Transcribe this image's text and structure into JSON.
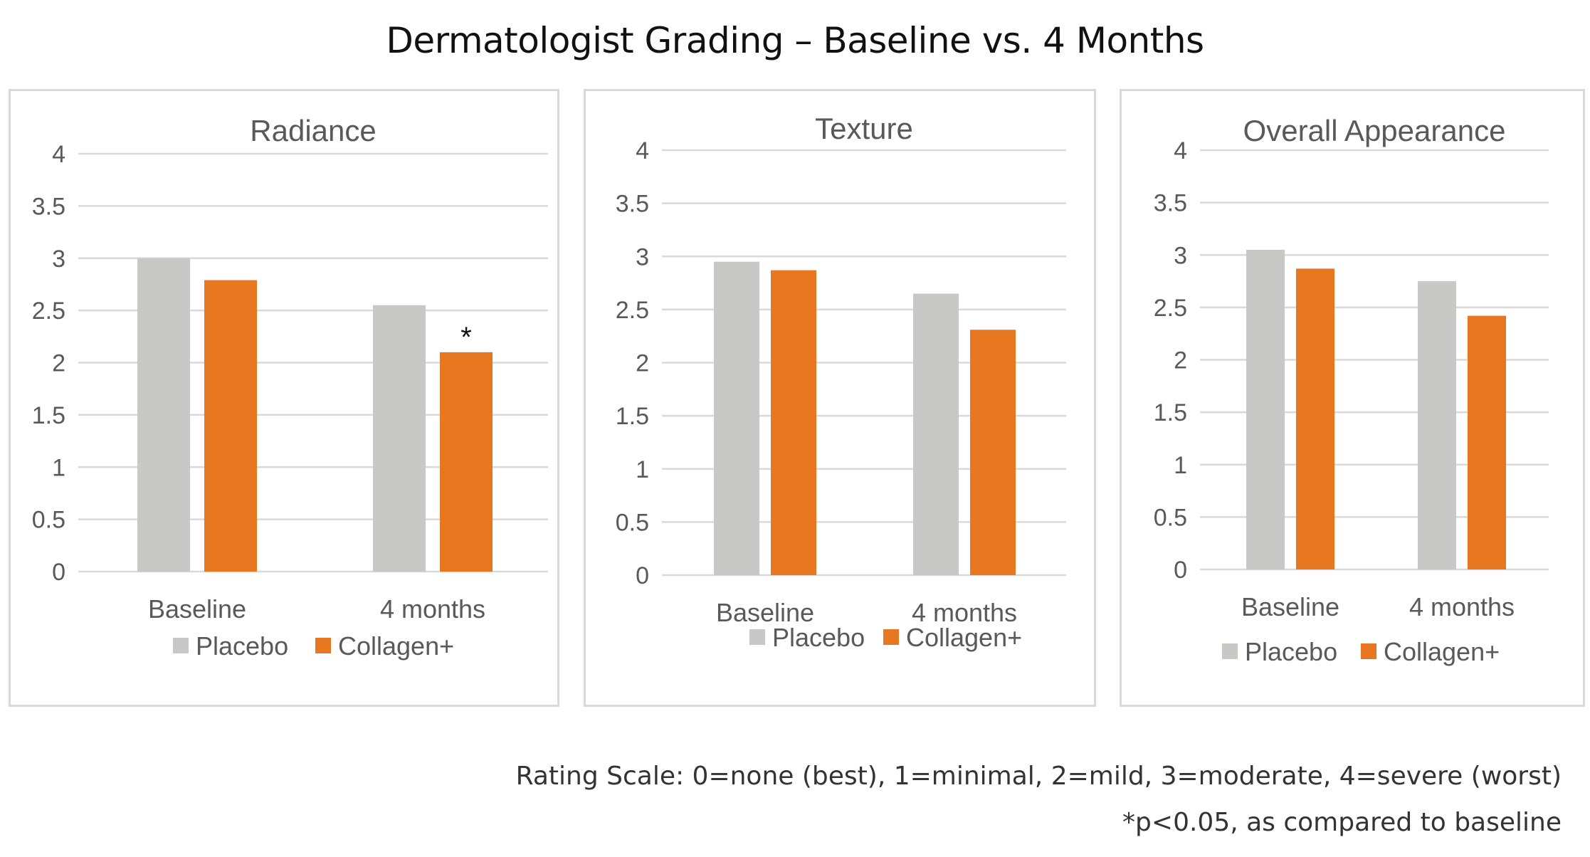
{
  "title": "Dermatologist Grading – Baseline vs. 4 Months",
  "colors": {
    "placebo": "#c8c8c6",
    "collagen": "#e87722"
  },
  "chart_data": [
    {
      "type": "bar",
      "title": "Radiance",
      "categories": [
        "Baseline",
        "4 months"
      ],
      "series": [
        {
          "name": "Placebo",
          "values": [
            3.0,
            2.55
          ]
        },
        {
          "name": "Collagen+",
          "values": [
            2.79,
            2.1
          ]
        }
      ],
      "ylim": [
        0,
        4
      ],
      "yticks": [
        "0",
        "0.5",
        "1",
        "1.5",
        "2",
        "2.5",
        "3",
        "3.5",
        "4"
      ],
      "annotations": [
        {
          "category": "4 months",
          "series": "Collagen+",
          "text": "*"
        }
      ],
      "legend": "bottom",
      "grid": true
    },
    {
      "type": "bar",
      "title": "Texture",
      "categories": [
        "Baseline",
        "4 months"
      ],
      "series": [
        {
          "name": "Placebo",
          "values": [
            2.95,
            2.65
          ]
        },
        {
          "name": "Collagen+",
          "values": [
            2.87,
            2.31
          ]
        }
      ],
      "ylim": [
        0,
        4
      ],
      "yticks": [
        "0",
        "0.5",
        "1",
        "1.5",
        "2",
        "2.5",
        "3",
        "3.5",
        "4"
      ],
      "annotations": [],
      "legend": "bottom",
      "grid": true
    },
    {
      "type": "bar",
      "title": "Overall Appearance",
      "categories": [
        "Baseline",
        "4 months"
      ],
      "series": [
        {
          "name": "Placebo",
          "values": [
            3.05,
            2.75
          ]
        },
        {
          "name": "Collagen+",
          "values": [
            2.87,
            2.42
          ]
        }
      ],
      "ylim": [
        0,
        4
      ],
      "yticks": [
        "0",
        "0.5",
        "1",
        "1.5",
        "2",
        "2.5",
        "3",
        "3.5",
        "4"
      ],
      "annotations": [],
      "legend": "bottom",
      "grid": true
    }
  ],
  "footnotes": {
    "scale": "Rating Scale: 0=none (best), 1=minimal, 2=mild, 3=moderate, 4=severe (worst)",
    "significance": "*p<0.05, as compared to baseline"
  }
}
